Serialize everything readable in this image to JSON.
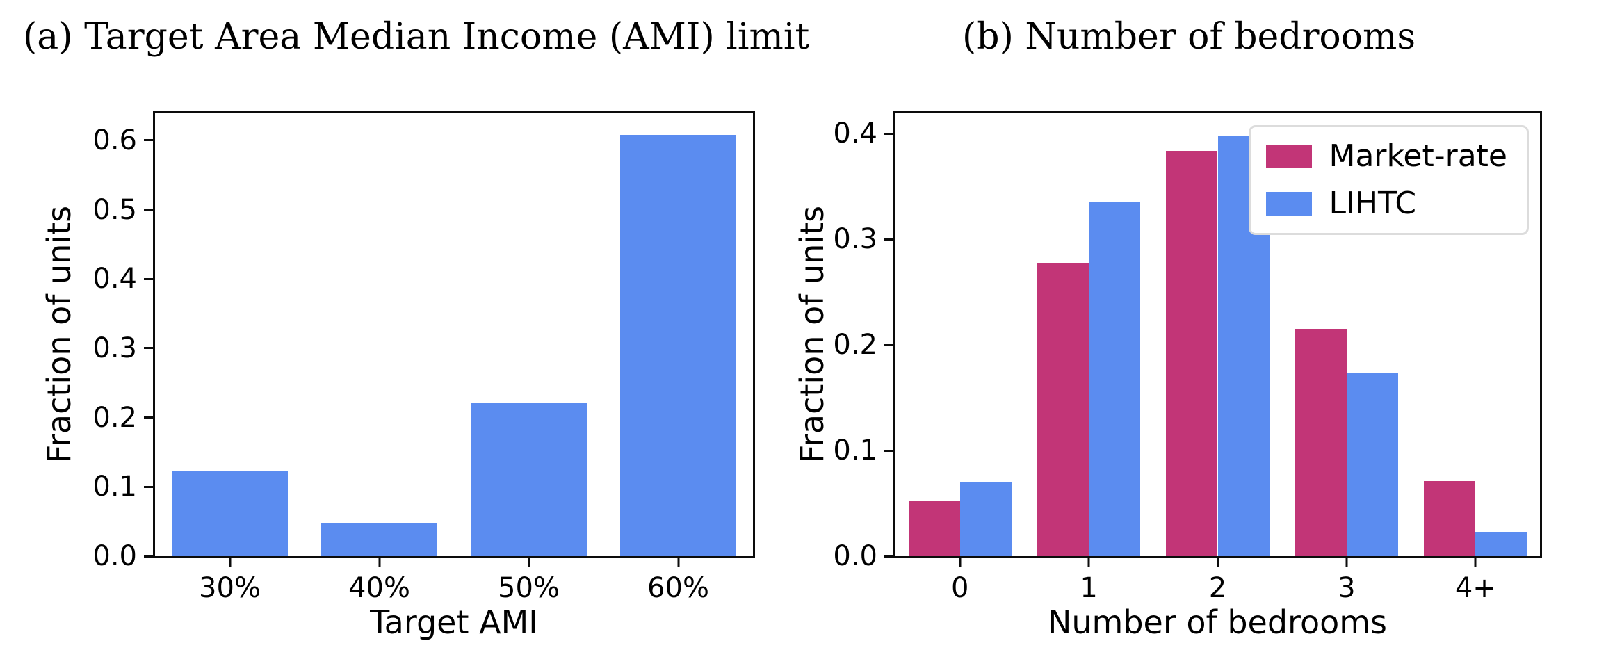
{
  "figure": {
    "background": "#ffffff"
  },
  "colors": {
    "lihtc_blue": "#5b8cf0",
    "market_crimson": "#c23577",
    "axis": "#0c0c0c",
    "legend_border": "#dcdcdc"
  },
  "chart_data": [
    {
      "id": "panel-a",
      "type": "bar",
      "title": "(a) Target Area Median Income (AMI) limit",
      "categories": [
        "30%",
        "40%",
        "50%",
        "60%"
      ],
      "values": [
        0.122,
        0.048,
        0.221,
        0.608
      ],
      "bar_color": "#5b8cf0",
      "xlabel": "Target AMI",
      "ylabel": "Fraction of units",
      "yticks": [
        0.0,
        0.1,
        0.2,
        0.3,
        0.4,
        0.5,
        0.6
      ],
      "ytick_labels": [
        "0.0",
        "0.1",
        "0.2",
        "0.3",
        "0.4",
        "0.5",
        "0.6"
      ],
      "ylim": [
        0,
        0.64
      ],
      "grid": false,
      "legend": null
    },
    {
      "id": "panel-b",
      "type": "bar",
      "title": "(b) Number of bedrooms",
      "categories": [
        "0",
        "1",
        "2",
        "3",
        "4+"
      ],
      "series": [
        {
          "name": "Market-rate",
          "color": "#c23577",
          "values": [
            0.053,
            0.277,
            0.384,
            0.215,
            0.071
          ]
        },
        {
          "name": "LIHTC",
          "color": "#5b8cf0",
          "values": [
            0.07,
            0.336,
            0.398,
            0.174,
            0.023
          ]
        }
      ],
      "xlabel": "Number of bedrooms",
      "ylabel": "Fraction of units",
      "yticks": [
        0.0,
        0.1,
        0.2,
        0.3,
        0.4
      ],
      "ytick_labels": [
        "0.0",
        "0.1",
        "0.2",
        "0.3",
        "0.4"
      ],
      "ylim": [
        0,
        0.42
      ],
      "grid": false,
      "legend": {
        "position": "upper right",
        "entries": [
          "Market-rate",
          "LIHTC"
        ]
      }
    }
  ]
}
